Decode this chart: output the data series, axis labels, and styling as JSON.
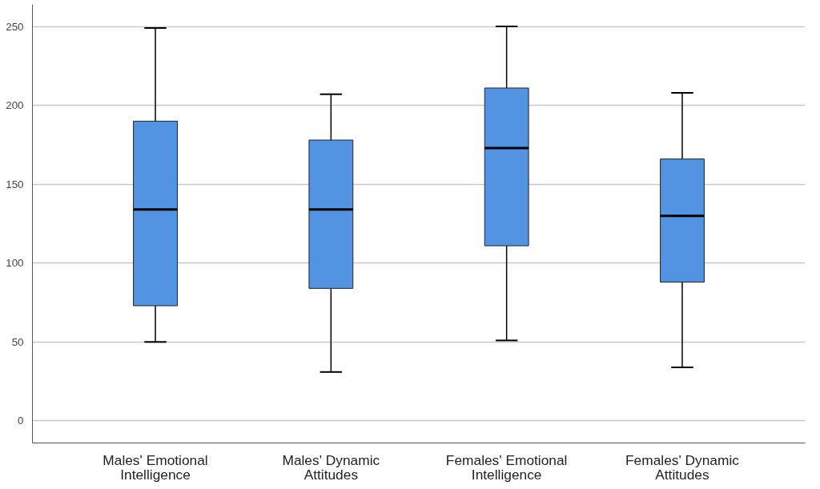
{
  "chart_data": {
    "type": "box",
    "categories": [
      "Males' Emotional\nIntelligence",
      "Males' Dynamic\nAttitudes",
      "Females' Emotional\nIntelligence",
      "Females' Dynamic\nAttitudes"
    ],
    "color": "#5294e2",
    "boxes": [
      {
        "low": 50,
        "q1": 73,
        "median": 134,
        "q3": 190,
        "high": 249
      },
      {
        "low": 31,
        "q1": 84,
        "median": 134,
        "q3": 178,
        "high": 207
      },
      {
        "low": 51,
        "q1": 111,
        "median": 173,
        "q3": 211,
        "high": 250
      },
      {
        "low": 34,
        "q1": 88,
        "median": 130,
        "q3": 166,
        "high": 208
      }
    ],
    "ylim": [
      -14,
      264
    ],
    "yticks": [
      0,
      50,
      100,
      150,
      200,
      250
    ],
    "grid": "y"
  }
}
